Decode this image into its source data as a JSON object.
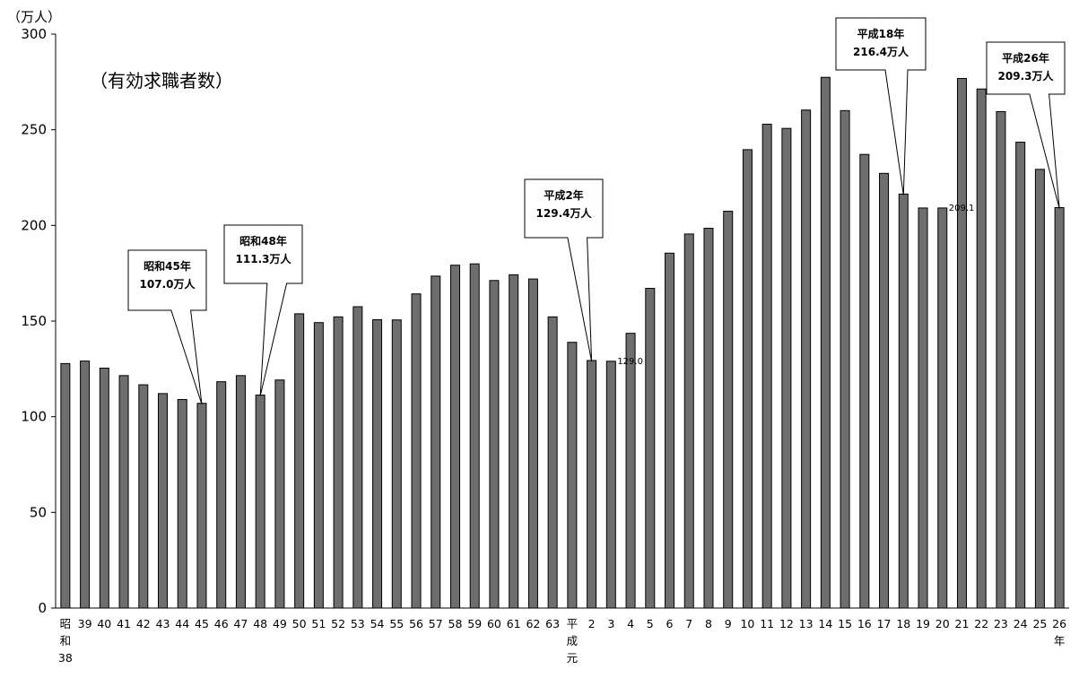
{
  "chart_data": {
    "type": "bar",
    "title": "（有効求職者数）",
    "unit_label": "（万人）",
    "ylim": [
      0,
      300
    ],
    "yticks": [
      "0",
      "50",
      "100",
      "150",
      "200",
      "250",
      "300"
    ],
    "grid": false,
    "bar_color": "#6e6e6e",
    "categories": [
      [
        "昭",
        "和",
        "38"
      ],
      [
        "39"
      ],
      [
        "40"
      ],
      [
        "41"
      ],
      [
        "42"
      ],
      [
        "43"
      ],
      [
        "44"
      ],
      [
        "45"
      ],
      [
        "46"
      ],
      [
        "47"
      ],
      [
        "48"
      ],
      [
        "49"
      ],
      [
        "50"
      ],
      [
        "51"
      ],
      [
        "52"
      ],
      [
        "53"
      ],
      [
        "54"
      ],
      [
        "55"
      ],
      [
        "56"
      ],
      [
        "57"
      ],
      [
        "58"
      ],
      [
        "59"
      ],
      [
        "60"
      ],
      [
        "61"
      ],
      [
        "62"
      ],
      [
        "63"
      ],
      [
        "平",
        "成",
        "元"
      ],
      [
        "2"
      ],
      [
        "3"
      ],
      [
        "4"
      ],
      [
        "5"
      ],
      [
        "6"
      ],
      [
        "7"
      ],
      [
        "8"
      ],
      [
        "9"
      ],
      [
        "10"
      ],
      [
        "11"
      ],
      [
        "12"
      ],
      [
        "13"
      ],
      [
        "14"
      ],
      [
        "15"
      ],
      [
        "16"
      ],
      [
        "17"
      ],
      [
        "18"
      ],
      [
        "19"
      ],
      [
        "20"
      ],
      [
        "21"
      ],
      [
        "22"
      ],
      [
        "23"
      ],
      [
        "24"
      ],
      [
        "25"
      ],
      [
        "26",
        "年"
      ]
    ],
    "values": [
      127.8,
      129.1,
      125.4,
      121.5,
      116.7,
      112.1,
      109.0,
      107.0,
      118.3,
      121.5,
      111.3,
      119.2,
      153.8,
      149.2,
      152.2,
      157.5,
      150.7,
      150.6,
      164.2,
      173.5,
      179.2,
      179.9,
      171.2,
      174.2,
      172.0,
      152.2,
      138.9,
      129.4,
      129.0,
      143.6,
      167.1,
      185.5,
      195.5,
      198.5,
      207.4,
      239.6,
      252.9,
      250.7,
      260.3,
      277.4,
      260.0,
      237.1,
      227.2,
      216.4,
      209.1,
      209.1,
      276.8,
      271.3,
      259.5,
      243.5,
      229.3,
      209.3
    ],
    "value_labels": [
      {
        "index": 28,
        "text": "129.0"
      },
      {
        "index": 45,
        "text": "209.1"
      }
    ],
    "callouts": [
      {
        "index": 7,
        "lines": [
          "昭和45年",
          "107.0万人"
        ]
      },
      {
        "index": 10,
        "lines": [
          "昭和48年",
          "111.3万人"
        ]
      },
      {
        "index": 27,
        "lines": [
          "平成2年",
          "129.4万人"
        ]
      },
      {
        "index": 43,
        "lines": [
          "平成18年",
          "216.4万人"
        ]
      },
      {
        "index": 51,
        "lines": [
          "平成26年",
          "209.3万人"
        ]
      }
    ]
  }
}
